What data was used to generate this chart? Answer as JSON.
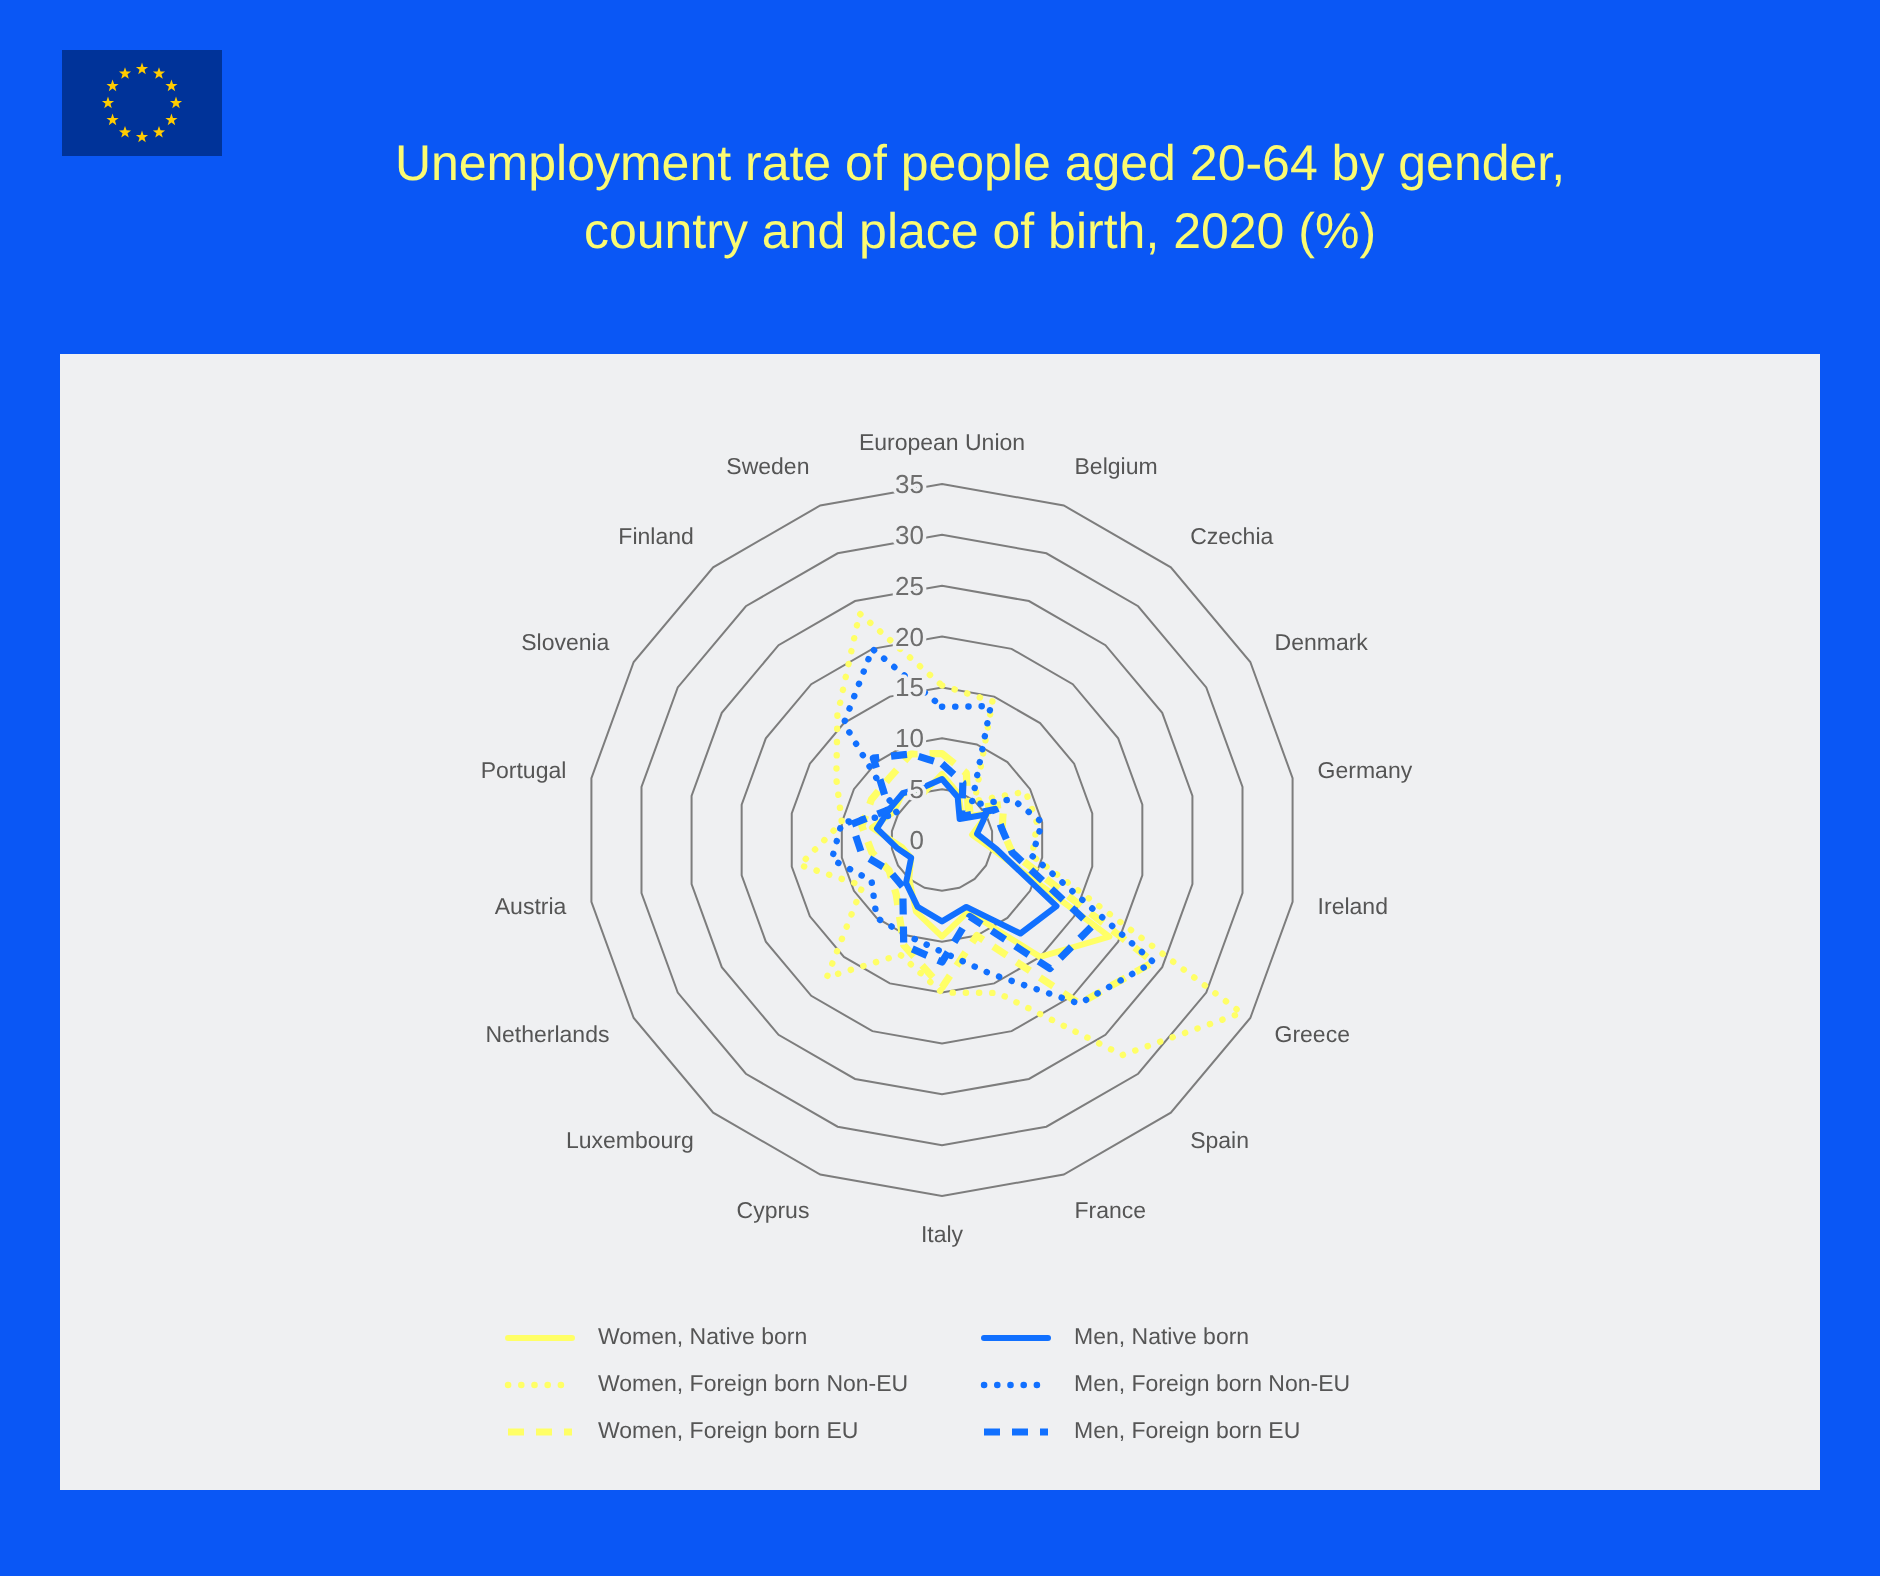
{
  "chart_data": {
    "type": "radar",
    "title": "Unemployment rate of people aged 20-64 by gender, country and place of birth, 2020 (%)",
    "categories": [
      "European Union",
      "Belgium",
      "Czechia",
      "Denmark",
      "Germany",
      "Ireland",
      "Greece",
      "Spain",
      "France",
      "Italy",
      "Cyprus",
      "Luxembourg",
      "Netherlands",
      "Austria",
      "Portugal",
      "Slovenia",
      "Finland",
      "Sweden"
    ],
    "series": [
      {
        "name": "Women, Native born",
        "color": "#ffff66",
        "line_style": "solid",
        "values": [
          6.5,
          4.8,
          3,
          5.2,
          3,
          5,
          19,
          15,
          7.5,
          9.5,
          7.5,
          5,
          3.5,
          4,
          7,
          5.5,
          6,
          5
        ]
      },
      {
        "name": "Women, Foreign born Non-EU",
        "color": "#ffff66",
        "line_style": "dotted",
        "values": [
          15.2,
          14.5,
          5,
          9.5,
          9.5,
          9,
          34,
          27.6,
          16,
          15,
          12,
          17.6,
          9,
          14.2,
          10,
          12,
          16,
          23.7
        ]
      },
      {
        "name": "Women, Foreign born EU",
        "color": "#ffff66",
        "line_style": "dashed",
        "values": [
          8.5,
          7,
          4,
          7,
          6,
          7,
          24,
          21,
          10,
          14.5,
          11,
          7,
          6,
          7,
          8,
          8,
          8,
          9
        ]
      },
      {
        "name": "Men, Native born",
        "color": "#1170ff",
        "line_style": "solid",
        "values": [
          6,
          4.5,
          2.7,
          5,
          3.5,
          5.5,
          13,
          12,
          7,
          8,
          7,
          5.5,
          3.5,
          4.5,
          6.5,
          6,
          6,
          5.5
        ]
      },
      {
        "name": "Men, Foreign born Non-EU",
        "color": "#1170ff",
        "line_style": "dotted",
        "values": [
          13.1,
          14,
          4.5,
          8,
          10,
          9,
          24,
          21,
          14,
          11,
          10,
          10,
          8,
          11,
          10,
          5,
          15,
          20
        ]
      },
      {
        "name": "Men, Foreign born EU",
        "color": "#1170ff",
        "line_style": "dashed",
        "values": [
          7.5,
          6,
          3,
          6,
          6,
          7,
          17,
          16.5,
          8,
          12,
          11,
          6,
          6,
          8,
          9,
          6,
          10.5,
          9
        ]
      }
    ],
    "ylim": [
      0,
      35
    ],
    "yticks": [
      0,
      5,
      10,
      15,
      20,
      25,
      30,
      35
    ],
    "grid": true,
    "legend": "bottom"
  }
}
